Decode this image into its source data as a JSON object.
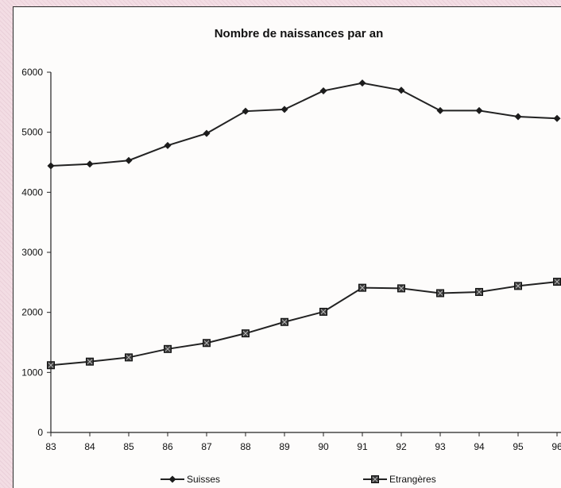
{
  "chart_data": {
    "type": "line",
    "title": "Nombre de naissances par an",
    "xlabel": "",
    "ylabel": "",
    "categories": [
      "83",
      "84",
      "85",
      "86",
      "87",
      "88",
      "89",
      "90",
      "91",
      "92",
      "93",
      "94",
      "95",
      "96"
    ],
    "ylim": [
      0,
      6000
    ],
    "yticks": [
      "0",
      "1000",
      "2000",
      "3000",
      "4000",
      "5000",
      "6000"
    ],
    "grid": false,
    "legend_position": "bottom",
    "series": [
      {
        "name": "Suisses",
        "marker": "diamond",
        "color": "#222222",
        "values": [
          4440,
          4470,
          4530,
          4780,
          4980,
          5350,
          5380,
          5690,
          5820,
          5700,
          5360,
          5360,
          5260,
          5230
        ]
      },
      {
        "name": "Etrangères",
        "marker": "square",
        "color": "#222222",
        "values": [
          1120,
          1180,
          1250,
          1390,
          1490,
          1650,
          1840,
          2010,
          2410,
          2400,
          2320,
          2340,
          2440,
          2510
        ]
      }
    ]
  }
}
